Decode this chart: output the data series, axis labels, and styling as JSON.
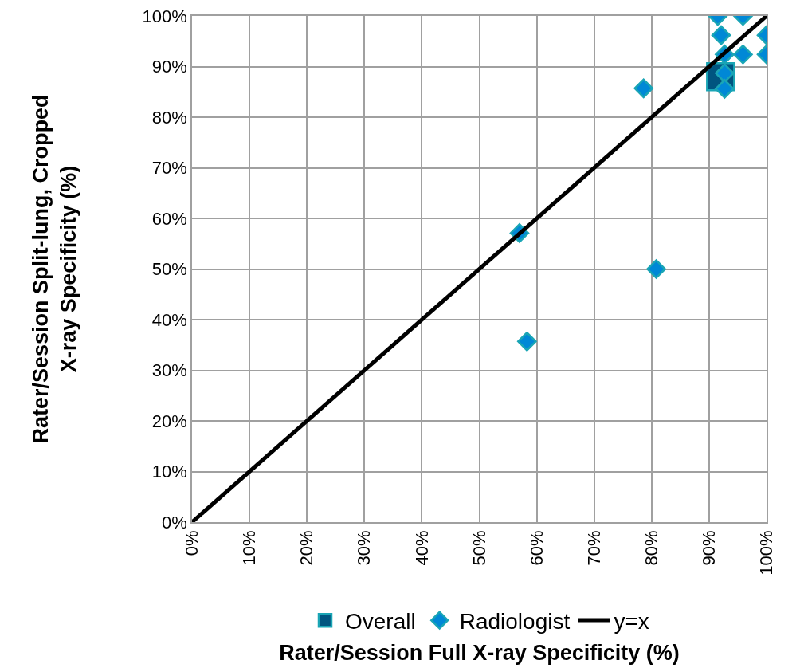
{
  "chart_data": {
    "type": "scatter",
    "xlabel": "Rater/Session Full X-ray Specificity (%)",
    "ylabel": "Rater/Session Split-lung, Cropped\nX-ray Specificity (%)",
    "xlim": [
      0,
      100
    ],
    "ylim": [
      0,
      100
    ],
    "xticks": [
      {
        "value": 0,
        "label": "0%"
      },
      {
        "value": 10,
        "label": "10%"
      },
      {
        "value": 20,
        "label": "20%"
      },
      {
        "value": 30,
        "label": "30%"
      },
      {
        "value": 40,
        "label": "40%"
      },
      {
        "value": 50,
        "label": "50%"
      },
      {
        "value": 60,
        "label": "60%"
      },
      {
        "value": 70,
        "label": "70%"
      },
      {
        "value": 80,
        "label": "80%"
      },
      {
        "value": 90,
        "label": "90%"
      },
      {
        "value": 100,
        "label": "100%"
      }
    ],
    "yticks": [
      {
        "value": 0,
        "label": "0%"
      },
      {
        "value": 10,
        "label": "10%"
      },
      {
        "value": 20,
        "label": "20%"
      },
      {
        "value": 30,
        "label": "30%"
      },
      {
        "value": 40,
        "label": "40%"
      },
      {
        "value": 50,
        "label": "50%"
      },
      {
        "value": 60,
        "label": "60%"
      },
      {
        "value": 70,
        "label": "70%"
      },
      {
        "value": 80,
        "label": "80%"
      },
      {
        "value": 90,
        "label": "90%"
      },
      {
        "value": 100,
        "label": "100%"
      }
    ],
    "grid": true,
    "legend": "bottom",
    "series": [
      {
        "name": "Overall",
        "marker": "square",
        "color": "#005580",
        "x": [
          92
        ],
        "values": [
          88
        ]
      },
      {
        "name": "Radiologist",
        "marker": "diamond",
        "color": "#0088d6",
        "x": [
          57,
          58.3,
          78.6,
          80.8,
          91.5,
          95.9,
          92.1,
          100,
          92.7,
          95.9,
          100,
          92.7,
          92.7
        ],
        "values": [
          57.1,
          35.7,
          85.7,
          50,
          100,
          100,
          96.2,
          96.2,
          92.4,
          92.4,
          92.4,
          88.7,
          85.6
        ]
      },
      {
        "name": "y=x",
        "type": "line",
        "marker": "none",
        "color": "#000000",
        "x": [
          0,
          100
        ],
        "values": [
          0,
          100
        ]
      }
    ]
  }
}
